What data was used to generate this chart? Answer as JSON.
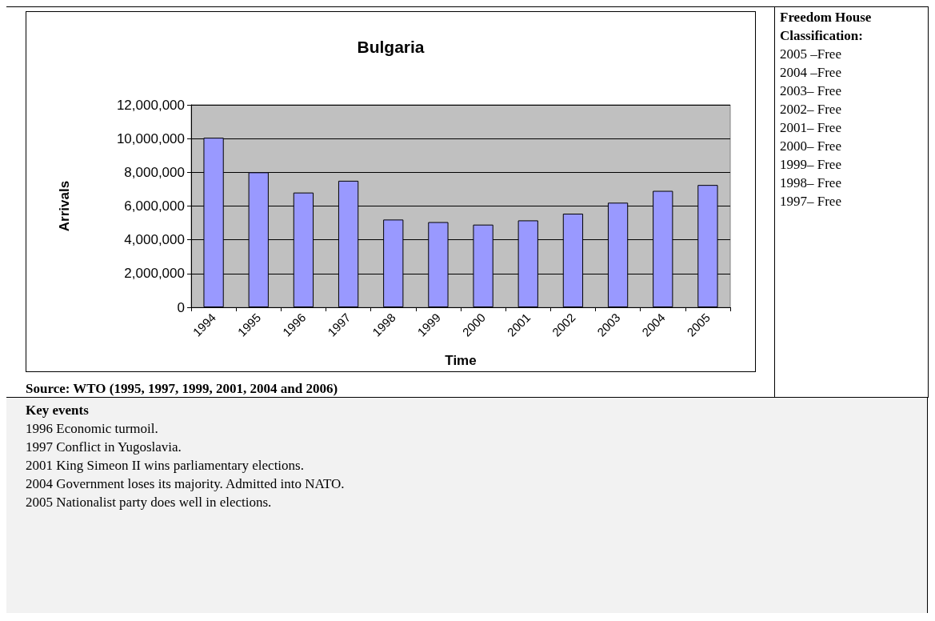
{
  "chart_data": [
    {
      "type": "bar",
      "title": "Bulgaria",
      "xlabel": "Time",
      "ylabel": "Arrivals",
      "categories": [
        "1994",
        "1995",
        "1996",
        "1997",
        "1998",
        "1999",
        "2000",
        "2001",
        "2002",
        "2003",
        "2004",
        "2005"
      ],
      "values": [
        10050000,
        8000000,
        6800000,
        7500000,
        5200000,
        5050000,
        4900000,
        5150000,
        5550000,
        6200000,
        6900000,
        7250000
      ],
      "color": "#9999ff",
      "ylim": [
        0,
        12000000
      ],
      "yticks": [
        {
          "value": 0,
          "label": "0"
        },
        {
          "value": 2000000,
          "label": "2,000,000"
        },
        {
          "value": 4000000,
          "label": "4,000,000"
        },
        {
          "value": 6000000,
          "label": "6,000,000"
        },
        {
          "value": 8000000,
          "label": "8,000,000"
        },
        {
          "value": 10000000,
          "label": "10,000,000"
        },
        {
          "value": 12000000,
          "label": "12,000,000"
        }
      ],
      "grid": "y",
      "annotations": [
        "Source: WTO (1995, 1997, 1999, 2001, 2004 and 2006)"
      ]
    },
    {
      "type": "other",
      "title": "Freedom House Classification:",
      "annotations": [
        "2005 –Free",
        "2004 –Free",
        "2003– Free",
        "2002– Free",
        "2001– Free",
        "2000– Free",
        "1999– Free",
        "1998– Free",
        "1997– Free"
      ]
    },
    {
      "type": "other",
      "title": "Key events",
      "annotations": [
        "1996 Economic turmoil.",
        "1997 Conflict in Yugoslavia.",
        "2001 King Simeon II wins parliamentary elections.",
        "2004 Government loses its majority. Admitted into NATO.",
        "2005 Nationalist party does well in elections."
      ]
    }
  ]
}
